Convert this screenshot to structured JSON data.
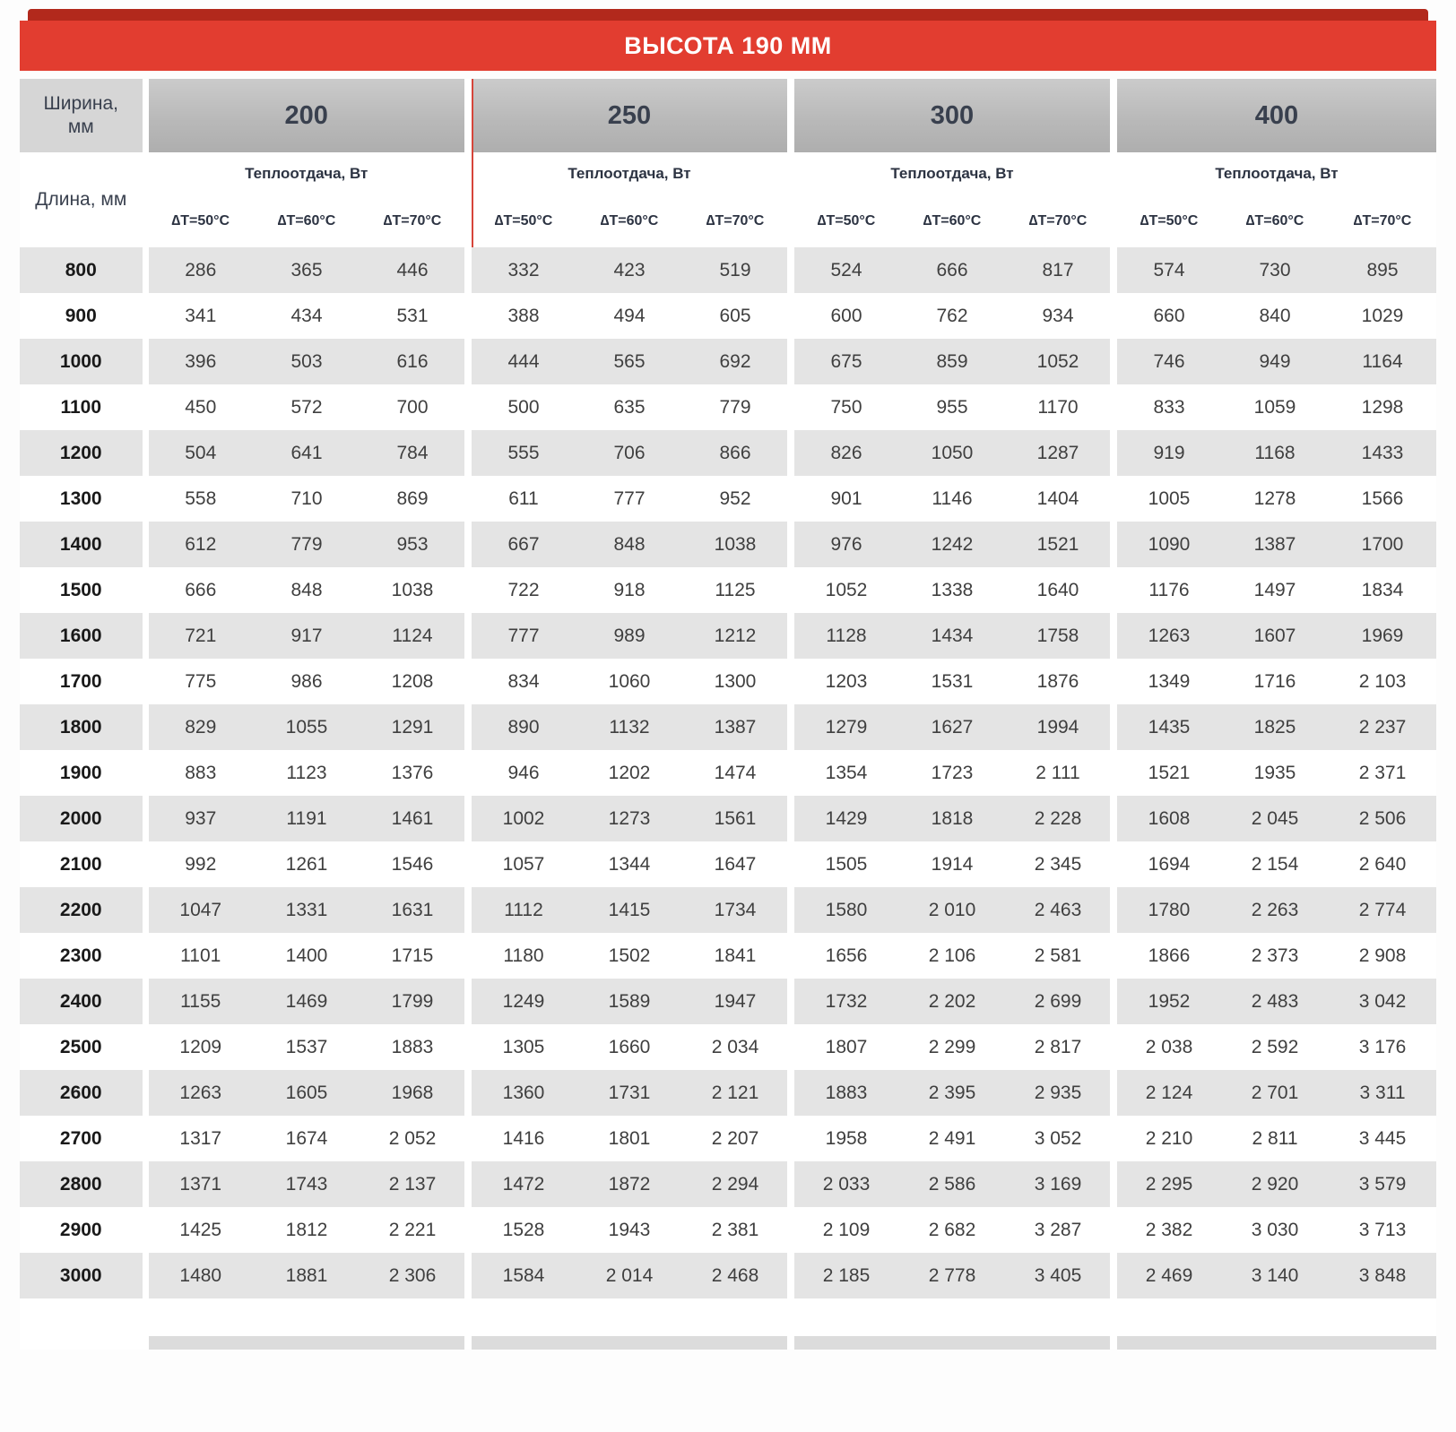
{
  "title": "ВЫСОТА 190 ММ",
  "corner": {
    "width_label": "Ширина,\nмм",
    "length_label": "Длина, мм"
  },
  "heat_label": "Теплоотдача, Вт",
  "dt_labels": [
    "∆T=50°C",
    "∆T=60°C",
    "∆T=70°C"
  ],
  "groups": [
    "200",
    "250",
    "300",
    "400"
  ],
  "colors": {
    "accent_red": "#e23d30",
    "dark_red": "#b2291c",
    "header_gray": "#bdbdbd",
    "row_gray": "#e4e4e4",
    "text_dark": "#39404e"
  },
  "rows": [
    {
      "length": "800",
      "values": [
        "286",
        "365",
        "446",
        "332",
        "423",
        "519",
        "524",
        "666",
        "817",
        "574",
        "730",
        "895"
      ]
    },
    {
      "length": "900",
      "values": [
        "341",
        "434",
        "531",
        "388",
        "494",
        "605",
        "600",
        "762",
        "934",
        "660",
        "840",
        "1029"
      ]
    },
    {
      "length": "1000",
      "values": [
        "396",
        "503",
        "616",
        "444",
        "565",
        "692",
        "675",
        "859",
        "1052",
        "746",
        "949",
        "1164"
      ]
    },
    {
      "length": "1100",
      "values": [
        "450",
        "572",
        "700",
        "500",
        "635",
        "779",
        "750",
        "955",
        "1170",
        "833",
        "1059",
        "1298"
      ]
    },
    {
      "length": "1200",
      "values": [
        "504",
        "641",
        "784",
        "555",
        "706",
        "866",
        "826",
        "1050",
        "1287",
        "919",
        "1168",
        "1433"
      ]
    },
    {
      "length": "1300",
      "values": [
        "558",
        "710",
        "869",
        "611",
        "777",
        "952",
        "901",
        "1146",
        "1404",
        "1005",
        "1278",
        "1566"
      ]
    },
    {
      "length": "1400",
      "values": [
        "612",
        "779",
        "953",
        "667",
        "848",
        "1038",
        "976",
        "1242",
        "1521",
        "1090",
        "1387",
        "1700"
      ]
    },
    {
      "length": "1500",
      "values": [
        "666",
        "848",
        "1038",
        "722",
        "918",
        "1125",
        "1052",
        "1338",
        "1640",
        "1176",
        "1497",
        "1834"
      ]
    },
    {
      "length": "1600",
      "values": [
        "721",
        "917",
        "1124",
        "777",
        "989",
        "1212",
        "1128",
        "1434",
        "1758",
        "1263",
        "1607",
        "1969"
      ]
    },
    {
      "length": "1700",
      "values": [
        "775",
        "986",
        "1208",
        "834",
        "1060",
        "1300",
        "1203",
        "1531",
        "1876",
        "1349",
        "1716",
        "2 103"
      ]
    },
    {
      "length": "1800",
      "values": [
        "829",
        "1055",
        "1291",
        "890",
        "1132",
        "1387",
        "1279",
        "1627",
        "1994",
        "1435",
        "1825",
        "2 237"
      ]
    },
    {
      "length": "1900",
      "values": [
        "883",
        "1123",
        "1376",
        "946",
        "1202",
        "1474",
        "1354",
        "1723",
        "2 111",
        "1521",
        "1935",
        "2 371"
      ]
    },
    {
      "length": "2000",
      "values": [
        "937",
        "1191",
        "1461",
        "1002",
        "1273",
        "1561",
        "1429",
        "1818",
        "2 228",
        "1608",
        "2 045",
        "2 506"
      ]
    },
    {
      "length": "2100",
      "values": [
        "992",
        "1261",
        "1546",
        "1057",
        "1344",
        "1647",
        "1505",
        "1914",
        "2 345",
        "1694",
        "2 154",
        "2 640"
      ]
    },
    {
      "length": "2200",
      "values": [
        "1047",
        "1331",
        "1631",
        "1112",
        "1415",
        "1734",
        "1580",
        "2 010",
        "2 463",
        "1780",
        "2 263",
        "2 774"
      ]
    },
    {
      "length": "2300",
      "values": [
        "1101",
        "1400",
        "1715",
        "1180",
        "1502",
        "1841",
        "1656",
        "2 106",
        "2 581",
        "1866",
        "2 373",
        "2 908"
      ]
    },
    {
      "length": "2400",
      "values": [
        "1155",
        "1469",
        "1799",
        "1249",
        "1589",
        "1947",
        "1732",
        "2 202",
        "2 699",
        "1952",
        "2 483",
        "3 042"
      ]
    },
    {
      "length": "2500",
      "values": [
        "1209",
        "1537",
        "1883",
        "1305",
        "1660",
        "2 034",
        "1807",
        "2 299",
        "2 817",
        "2 038",
        "2 592",
        "3 176"
      ]
    },
    {
      "length": "2600",
      "values": [
        "1263",
        "1605",
        "1968",
        "1360",
        "1731",
        "2 121",
        "1883",
        "2 395",
        "2 935",
        "2 124",
        "2 701",
        "3 311"
      ]
    },
    {
      "length": "2700",
      "values": [
        "1317",
        "1674",
        "2 052",
        "1416",
        "1801",
        "2 207",
        "1958",
        "2 491",
        "3 052",
        "2 210",
        "2 811",
        "3 445"
      ]
    },
    {
      "length": "2800",
      "values": [
        "1371",
        "1743",
        "2 137",
        "1472",
        "1872",
        "2 294",
        "2 033",
        "2 586",
        "3 169",
        "2 295",
        "2 920",
        "3 579"
      ]
    },
    {
      "length": "2900",
      "values": [
        "1425",
        "1812",
        "2 221",
        "1528",
        "1943",
        "2 381",
        "2 109",
        "2 682",
        "3 287",
        "2 382",
        "3 030",
        "3 713"
      ]
    },
    {
      "length": "3000",
      "values": [
        "1480",
        "1881",
        "2 306",
        "1584",
        "2 014",
        "2 468",
        "2 185",
        "2 778",
        "3 405",
        "2 469",
        "3 140",
        "3 848"
      ]
    }
  ]
}
